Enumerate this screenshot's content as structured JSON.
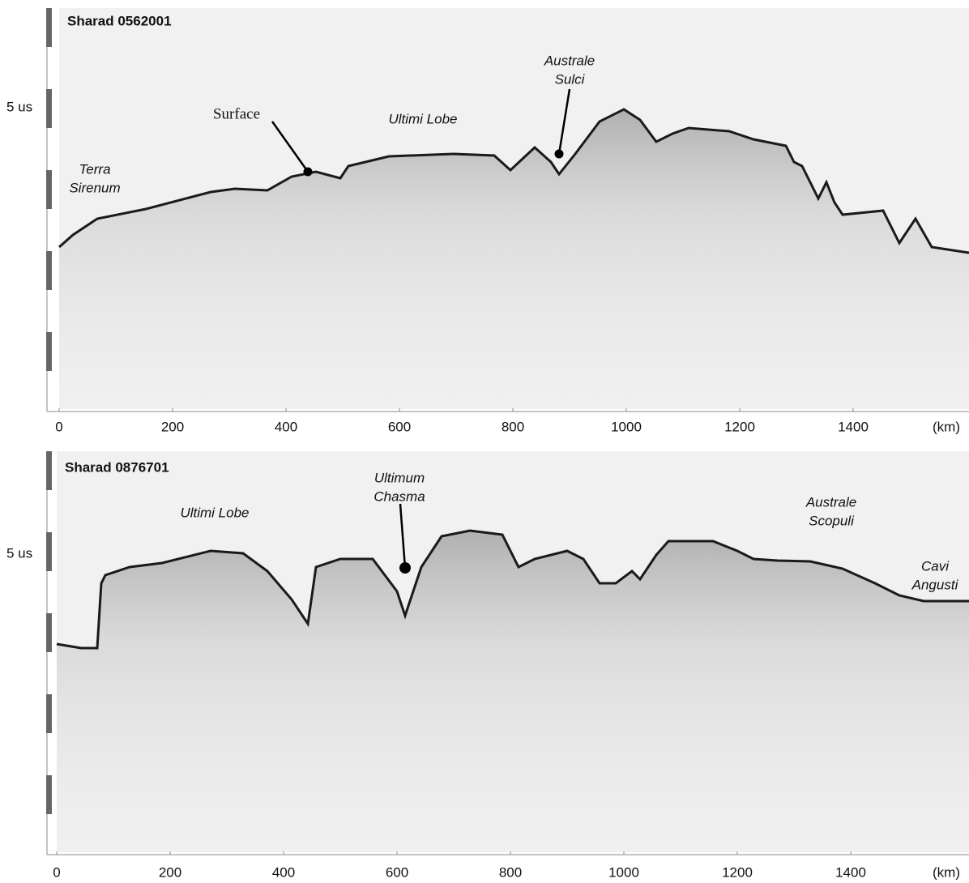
{
  "panels": [
    {
      "title": "Sharad 0562001",
      "y_label": "5 us",
      "x_ticks": [
        0,
        200,
        400,
        600,
        800,
        1000,
        1200,
        1400
      ],
      "x_unit": "(km)",
      "annotations": [
        {
          "lines": [
            "Terra",
            "Sirenum"
          ]
        },
        {
          "lines": [
            "Surface"
          ]
        },
        {
          "lines": [
            "Ultimi Lobe"
          ]
        },
        {
          "lines": [
            "Australe",
            "Sulci"
          ]
        }
      ]
    },
    {
      "title": "Sharad 0876701",
      "y_label": "5 us",
      "x_ticks": [
        0,
        200,
        400,
        600,
        800,
        1000,
        1200,
        1400
      ],
      "x_unit": "(km)",
      "annotations": [
        {
          "lines": [
            "Ultimi Lobe"
          ]
        },
        {
          "lines": [
            "Ultimum",
            "Chasma"
          ]
        },
        {
          "lines": [
            "Australe",
            "Scopuli"
          ]
        },
        {
          "lines": [
            "Cavi",
            "Angusti"
          ]
        }
      ]
    }
  ]
}
